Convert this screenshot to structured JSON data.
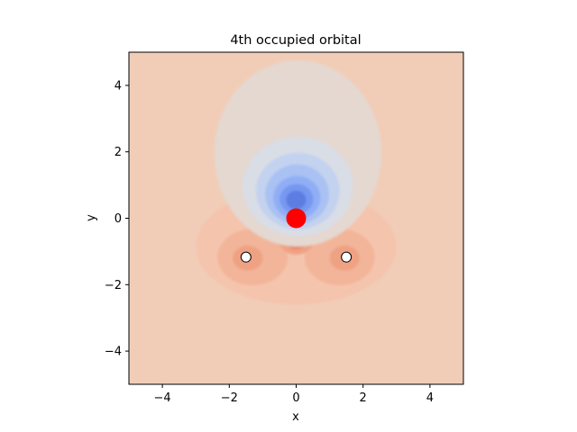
{
  "chart_data": {
    "type": "heatmap",
    "title": "4th occupied orbital",
    "xlabel": "x",
    "ylabel": "y",
    "xlim": [
      -5,
      5
    ],
    "ylim": [
      -5,
      5
    ],
    "grid": false,
    "x_ticks": [
      -4,
      -2,
      0,
      2,
      4
    ],
    "y_ticks": [
      -4,
      -2,
      0,
      2,
      4
    ],
    "x_tick_labels": [
      "−4",
      "−2",
      "0",
      "2",
      "4"
    ],
    "y_tick_labels": [
      "−4",
      "−2",
      "0",
      "2",
      "4"
    ],
    "colormap": "coolwarm",
    "background_color": "#f1cdb8",
    "atoms": [
      {
        "element": "O",
        "x": 0.0,
        "y": 0.0,
        "color": "#ff0000"
      },
      {
        "element": "H",
        "x": -1.5,
        "y": -1.17,
        "color": "#ffffff"
      },
      {
        "element": "H",
        "x": 1.5,
        "y": -1.17,
        "color": "#ffffff"
      }
    ],
    "contours": [
      {
        "region": "outer positive lobe",
        "color": "#f4c4ad"
      },
      {
        "region": "H1 lobe ring",
        "color": "#f2b59a"
      },
      {
        "region": "H1 core",
        "color": "#efa283"
      },
      {
        "region": "H2 lobe ring",
        "color": "#f2b59a"
      },
      {
        "region": "H2 core",
        "color": "#efa283"
      },
      {
        "region": "below-O lobe 1",
        "color": "#eea385"
      },
      {
        "region": "below-O lobe 2",
        "color": "#e88b6e"
      },
      {
        "region": "below-O lobe 3",
        "color": "#e07a5f"
      },
      {
        "region": "upper neutral lobe",
        "color": "#e4d8d0"
      },
      {
        "region": "negative lobe 1",
        "color": "#d9dde6"
      },
      {
        "region": "negative lobe 2",
        "color": "#c3d2ef"
      },
      {
        "region": "negative lobe 3",
        "color": "#a9c1f3"
      },
      {
        "region": "negative lobe 4",
        "color": "#8faef5"
      },
      {
        "region": "negative lobe 5",
        "color": "#7797f0"
      },
      {
        "region": "negative lobe 6",
        "color": "#5d7de3"
      }
    ]
  }
}
